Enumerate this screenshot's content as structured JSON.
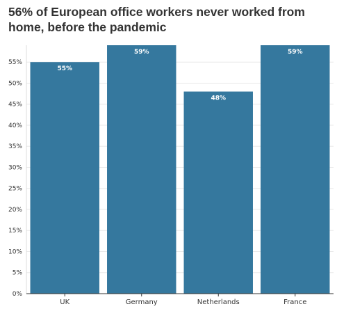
{
  "chart_data": {
    "type": "bar",
    "title": "56% of European office workers never worked from home, before the pandemic",
    "categories": [
      "UK",
      "Germany",
      "Netherlands",
      "France"
    ],
    "values": [
      55,
      59,
      48,
      59
    ],
    "data_labels": [
      "55%",
      "59%",
      "48%",
      "59%"
    ],
    "xlabel": "",
    "ylabel": "",
    "ylim": [
      0,
      59
    ],
    "yticks": [
      0,
      5,
      10,
      15,
      20,
      25,
      30,
      35,
      40,
      45,
      50,
      55
    ],
    "ytick_labels": [
      "0%",
      "5%",
      "10%",
      "15%",
      "20%",
      "25%",
      "30%",
      "35%",
      "40%",
      "45%",
      "50%",
      "55%"
    ],
    "grid": true,
    "legend": "none",
    "colors": {
      "bar": "#35789e",
      "grid": "#e8e8e8",
      "axis": "#333333",
      "title": "#333333"
    }
  }
}
